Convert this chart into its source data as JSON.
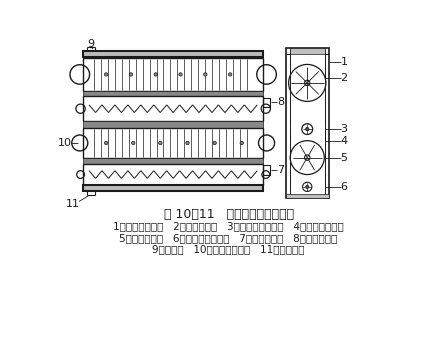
{
  "title": "图 10－11   双层扁条滚筒清理机",
  "caption_line1": "1－上层扁条滚筒   2－上层排杂网   3－上层螺旋输送器   4－下层扁条滚筒",
  "caption_line2": "5－下层排杂网   6－下层螺旋输送器   7－下层出料口   8－上层出料口",
  "caption_line3": "9－进料口   10－上层螺旋出口   11－尘杂出口",
  "line_color": "#1a1a1a",
  "bg_color": "#ffffff",
  "font_size_title": 9,
  "font_size_caption": 7.5,
  "font_size_label": 8
}
